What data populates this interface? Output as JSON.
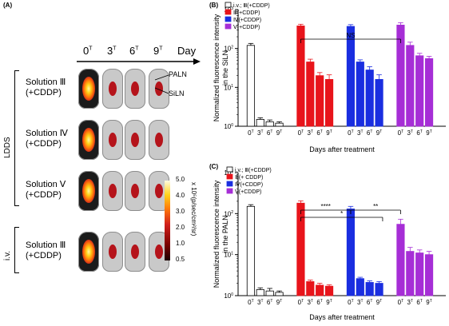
{
  "panel_a": {
    "label": "(A)",
    "time_labels": [
      {
        "base": "0",
        "sup": "T"
      },
      {
        "base": "3",
        "sup": "T"
      },
      {
        "base": "6",
        "sup": "T"
      },
      {
        "base": "9",
        "sup": "T"
      }
    ],
    "day_label": "Day",
    "rows": [
      {
        "line1": "Solution Ⅲ",
        "line2": "(+CDDP)"
      },
      {
        "line1": "Solution Ⅳ",
        "line2": "(+CDDP)"
      },
      {
        "line1": "Solution Ⅴ",
        "line2": "(+CDDP)"
      },
      {
        "line1": "Solution Ⅲ",
        "line2": "(+CDDP)"
      }
    ],
    "annotations": {
      "paln": "PALN",
      "siln": "SiLN"
    },
    "group_labels": {
      "ldds": "LDDS",
      "iv": "i.v."
    },
    "colorbar": {
      "ticks": [
        "5.0",
        "4.0",
        "3.0",
        "2.0",
        "1.0",
        "0.5"
      ],
      "unit": "x 10⁵(p/sec/cm²/sr)",
      "colors": [
        "#fffbe0",
        "#ffd21a",
        "#ff7a0a",
        "#d1201c",
        "#7a0000",
        "#1a0000"
      ]
    }
  },
  "chart_data": [
    {
      "type": "bar",
      "panel_label": "(B)",
      "ylabel": "Normalized fluorescence intensity in the SiLN",
      "xlabel": "Days after treatment",
      "yscale": "log",
      "ylim": [
        1,
        1000
      ],
      "ytick_values": [
        1,
        10,
        100,
        1000
      ],
      "ytick_labels": [
        {
          "base": "10",
          "sup": "0"
        },
        {
          "base": "10",
          "sup": "1"
        },
        {
          "base": "10",
          "sup": "2"
        },
        {
          "base": "10",
          "sup": "3"
        }
      ],
      "categories": [
        {
          "base": "0",
          "sup": "T"
        },
        {
          "base": "3",
          "sup": "T"
        },
        {
          "base": "6",
          "sup": "T"
        },
        {
          "base": "9",
          "sup": "T"
        }
      ],
      "series": [
        {
          "name": "i.v.; Ⅲ(+CDDP)",
          "color": "#ffffff",
          "values": [
            120,
            1.5,
            1.3,
            1.2
          ],
          "errors": [
            15,
            0.15,
            0.15,
            0.1
          ]
        },
        {
          "name": "Ⅲ(+CDDP)",
          "color": "#e8141b",
          "values": [
            380,
            45,
            20,
            16
          ],
          "errors": [
            40,
            8,
            4,
            5
          ]
        },
        {
          "name": "Ⅳ(+CDDP)",
          "color": "#1a2ee0",
          "values": [
            370,
            45,
            28,
            16
          ],
          "errors": [
            40,
            6,
            6,
            5
          ]
        },
        {
          "name": "Ⅴ(+CDDP)",
          "color": "#a62ed6",
          "values": [
            400,
            120,
            65,
            55
          ],
          "errors": [
            60,
            25,
            10,
            8
          ]
        }
      ],
      "legend": "top-left",
      "annotations": [
        {
          "text": "NS",
          "from": "Ⅲ(+CDDP)",
          "to": "Ⅴ(+CDDP)"
        }
      ]
    },
    {
      "type": "bar",
      "panel_label": "(C)",
      "ylabel": "Normalized fluorescence intensity in the PALN",
      "xlabel": "Days after treatment",
      "yscale": "log",
      "ylim": [
        1,
        1000
      ],
      "ytick_values": [
        1,
        10,
        100,
        1000
      ],
      "ytick_labels": [
        {
          "base": "10",
          "sup": "0"
        },
        {
          "base": "10",
          "sup": "1"
        },
        {
          "base": "10",
          "sup": "2"
        },
        {
          "base": "10",
          "sup": "3"
        }
      ],
      "categories": [
        {
          "base": "0",
          "sup": "T"
        },
        {
          "base": "3",
          "sup": "T"
        },
        {
          "base": "6",
          "sup": "T"
        },
        {
          "base": "9",
          "sup": "T"
        }
      ],
      "series": [
        {
          "name": "i.v.; Ⅲ(+CDDP)",
          "color": "#ffffff",
          "values": [
            150,
            1.4,
            1.3,
            1.2
          ],
          "errors": [
            15,
            0.15,
            0.2,
            0.1
          ]
        },
        {
          "name": "Ⅲ(+ CDDP)",
          "color": "#e8141b",
          "values": [
            180,
            2.2,
            1.8,
            1.7
          ],
          "errors": [
            25,
            0.2,
            0.2,
            0.15
          ]
        },
        {
          "name": "Ⅳ(+CDDP)",
          "color": "#1a2ee0",
          "values": [
            130,
            2.6,
            2.1,
            2.0
          ],
          "errors": [
            20,
            0.2,
            0.2,
            0.2
          ]
        },
        {
          "name": "Ⅴ(+CDDP)",
          "color": "#a62ed6",
          "values": [
            55,
            12,
            11,
            10
          ],
          "errors": [
            18,
            3,
            2,
            2
          ]
        }
      ],
      "legend": "top-left",
      "annotations": [
        {
          "text": "****",
          "from": "Ⅲ(+ CDDP)",
          "to": "Ⅳ(+CDDP)"
        },
        {
          "text": "*",
          "from": "Ⅲ(+ CDDP)",
          "to": "Ⅳ(+CDDP)"
        },
        {
          "text": "**",
          "from": "Ⅳ(+CDDP)",
          "to": "Ⅴ(+CDDP)"
        }
      ]
    }
  ]
}
